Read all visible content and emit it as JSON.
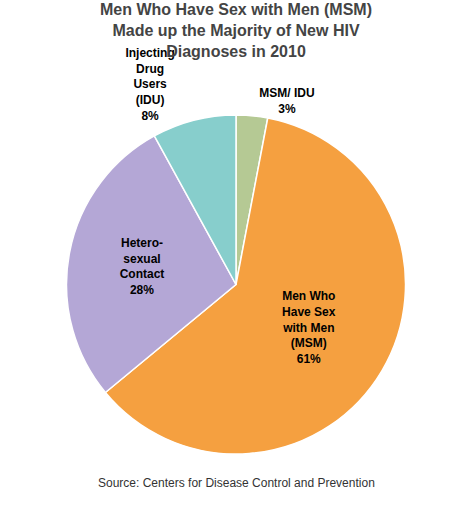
{
  "chart_data": {
    "type": "pie",
    "title": "Men Who Have Sex with Men (MSM)\nMade up the Majority of New HIV\nDiagnoses in 2010",
    "categories": [
      "MSM/ IDU",
      "Men Who\nHave Sex\nwith Men\n(MSM)",
      "Hetero-\nsexual\nContact",
      "Injecting\nDrug\nUsers\n(IDU)"
    ],
    "values": [
      3,
      61,
      28,
      8
    ],
    "value_labels": [
      "3%",
      "61%",
      "28%",
      "8%"
    ],
    "colors": [
      "#B5C994",
      "#F5A040",
      "#B4A7D6",
      "#87CECC"
    ],
    "data_labels": true,
    "annotations": [
      "Source: Centers for Disease Control and Prevention"
    ]
  }
}
